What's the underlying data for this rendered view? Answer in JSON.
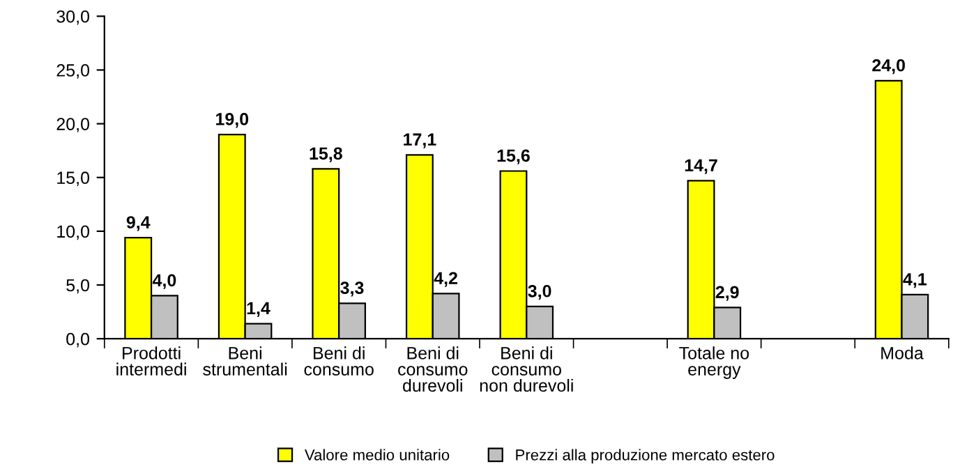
{
  "chart_data": {
    "type": "bar",
    "categories": [
      "Prodotti\nintermedi",
      "Beni\nstrumentali",
      "Beni di\nconsumo",
      "Beni di\nconsumo\ndurevoli",
      "Beni di\nconsumo\nnon durevoli",
      null,
      "Totale no\nenergy",
      null,
      "Moda"
    ],
    "series": [
      {
        "name": "Valore medio unitario",
        "color": "#ffff00",
        "values": [
          9.4,
          19.0,
          15.8,
          17.1,
          15.6,
          null,
          14.7,
          null,
          24.0
        ],
        "value_labels": [
          "9,4",
          "19,0",
          "15,8",
          "17,1",
          "15,6",
          null,
          "14,7",
          null,
          "24,0"
        ]
      },
      {
        "name": "Prezzi alla produzione mercato estero",
        "color": "#c0c0c0",
        "values": [
          4.0,
          1.4,
          3.3,
          4.2,
          3.0,
          null,
          2.9,
          null,
          4.1
        ],
        "value_labels": [
          "4,0",
          "1,4",
          "3,3",
          "4,2",
          "3,0",
          null,
          "2,9",
          null,
          "4,1"
        ]
      }
    ],
    "ylim": [
      0,
      30
    ],
    "yticks": [
      {
        "value": 0,
        "label": "0,0"
      },
      {
        "value": 5,
        "label": "5,0"
      },
      {
        "value": 10,
        "label": "10,0"
      },
      {
        "value": 15,
        "label": "15,0"
      },
      {
        "value": 20,
        "label": "20,0"
      },
      {
        "value": 25,
        "label": "25,0"
      },
      {
        "value": 30,
        "label": "30,0"
      }
    ],
    "grid": false,
    "legend": "bottom"
  }
}
